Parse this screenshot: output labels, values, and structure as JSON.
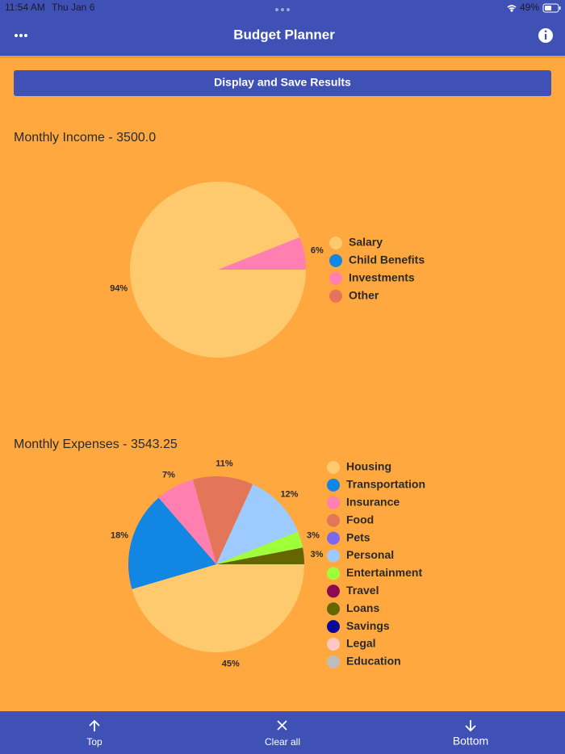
{
  "status_bar": {
    "time": "11:54 AM",
    "date": "Thu Jan 6",
    "battery": "49%"
  },
  "nav": {
    "title": "Budget Planner"
  },
  "button": {
    "label": "Display and Save Results"
  },
  "chart_data": [
    {
      "type": "pie",
      "title": "Monthly Income - 3500.0",
      "categories": [
        "Salary",
        "Child Benefits",
        "Investments",
        "Other"
      ],
      "values": [
        94,
        0,
        6,
        0
      ],
      "value_labels": [
        "94%",
        null,
        "6%",
        null
      ],
      "colors": [
        "#ffc96e",
        "#1186e3",
        "#ff80b0",
        "#e37558"
      ],
      "legend": "right"
    },
    {
      "type": "pie",
      "title": "Monthly Expenses - 3543.25",
      "categories": [
        "Housing",
        "Transportation",
        "Insurance",
        "Food",
        "Pets",
        "Personal",
        "Entertainment",
        "Travel",
        "Loans",
        "Savings",
        "Legal",
        "Education"
      ],
      "values": [
        45,
        18,
        7,
        11,
        0,
        12,
        3,
        0,
        3,
        0,
        0,
        0
      ],
      "value_labels": [
        "45%",
        "18%",
        "7%",
        "11%",
        null,
        "12%",
        "3%",
        null,
        "3%",
        null,
        null,
        null
      ],
      "colors": [
        "#ffc96e",
        "#1186e3",
        "#ff80b0",
        "#e37558",
        "#7b68ee",
        "#9ecbff",
        "#9eff3a",
        "#8b0a50",
        "#666600",
        "#0a0a99",
        "#ffc8c0",
        "#bdbdbd"
      ],
      "legend": "right"
    }
  ],
  "toolbar": [
    "Top",
    "Clear all",
    "Bottom"
  ]
}
